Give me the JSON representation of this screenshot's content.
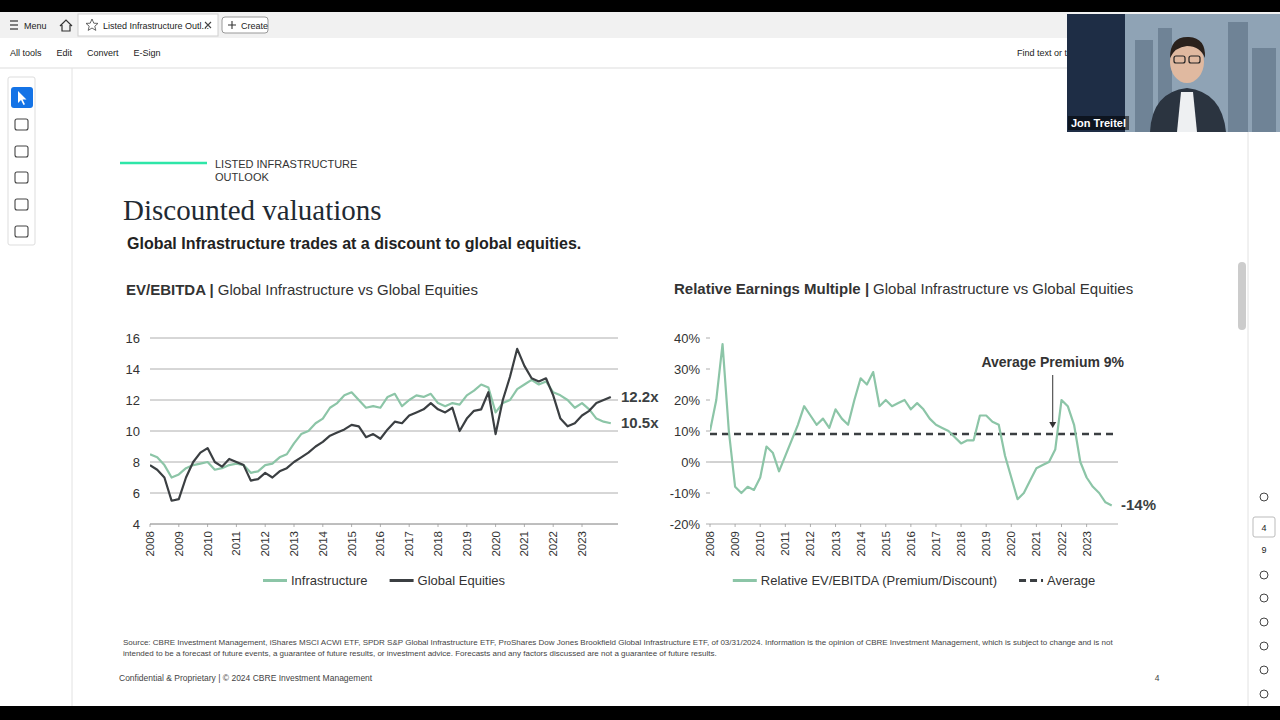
{
  "viewer": {
    "menu": "Menu",
    "tab": "Listed Infrastructure Outl...",
    "create": "Create",
    "tools": [
      "All tools",
      "Edit",
      "Convert",
      "E-Sign"
    ],
    "search": "Find text or to",
    "page_current": "4",
    "page_total": "9",
    "presenter": "Jon Treitel"
  },
  "page": {
    "section": "LISTED INFRASTRUCTURE OUTLOOK",
    "title": "Discounted valuations",
    "subtitle": "Global Infrastructure trades at a discount to global equities.",
    "source": "Source:  CBRE Investment Management, iShares MSCI ACWI ETF, SPDR S&P Global Infrastructure ETF, ProShares Dow Jones Brookfield Global Infrastructure ETF, of 03/31/2024.  Information is the opinion of CBRE Investment Management, which is subject to change and is not intended to be a forecast of future events, a guarantee of future results, or investment advice. Forecasts and any factors discussed are not a guarantee of future results.",
    "footer": "Confidential & Proprietary | © 2024 CBRE Investment Management",
    "page_number": "4"
  },
  "chart_data": [
    {
      "type": "line",
      "title": "EV/EBITDA |",
      "subtitle": "Global Infrastructure vs Global Equities",
      "x": [
        2008,
        2008.25,
        2008.5,
        2008.75,
        2009,
        2009.25,
        2009.5,
        2009.75,
        2010,
        2010.25,
        2010.5,
        2010.75,
        2011,
        2011.25,
        2011.5,
        2011.75,
        2012,
        2012.25,
        2012.5,
        2012.75,
        2013,
        2013.25,
        2013.5,
        2013.75,
        2014,
        2014.25,
        2014.5,
        2014.75,
        2015,
        2015.25,
        2015.5,
        2015.75,
        2016,
        2016.25,
        2016.5,
        2016.75,
        2017,
        2017.25,
        2017.5,
        2017.75,
        2018,
        2018.25,
        2018.5,
        2018.75,
        2019,
        2019.25,
        2019.5,
        2019.75,
        2020,
        2020.25,
        2020.5,
        2020.75,
        2021,
        2021.25,
        2021.5,
        2021.75,
        2022,
        2022.25,
        2022.5,
        2022.75,
        2023,
        2023.25,
        2023.5,
        2023.75,
        2024
      ],
      "xlim": [
        2008,
        2024.25
      ],
      "xticks": [
        2008,
        2009,
        2010,
        2011,
        2012,
        2013,
        2014,
        2015,
        2016,
        2017,
        2018,
        2019,
        2020,
        2021,
        2022,
        2023
      ],
      "ylim": [
        4,
        16
      ],
      "yticks": [
        4,
        6,
        8,
        10,
        12,
        14,
        16
      ],
      "grid": true,
      "legend": "bottom",
      "series": [
        {
          "name": "Infrastructure",
          "color": "#8cc5a7",
          "values": [
            8.5,
            8.3,
            7.8,
            7.0,
            7.2,
            7.6,
            7.8,
            7.9,
            8.0,
            7.5,
            7.6,
            7.8,
            7.9,
            7.8,
            7.3,
            7.4,
            7.8,
            7.9,
            8.3,
            8.5,
            9.2,
            9.8,
            10.0,
            10.5,
            10.8,
            11.5,
            11.8,
            12.3,
            12.5,
            12.0,
            11.5,
            11.6,
            11.5,
            12.2,
            12.4,
            11.6,
            12.0,
            12.3,
            12.2,
            12.4,
            11.8,
            11.6,
            11.8,
            11.7,
            12.3,
            12.6,
            13.0,
            12.8,
            11.2,
            11.8,
            12.0,
            12.7,
            13.0,
            13.3,
            13.0,
            13.2,
            12.5,
            12.3,
            12.0,
            11.5,
            11.8,
            11.4,
            10.8,
            10.6,
            10.5
          ]
        },
        {
          "name": "Global Equities",
          "color": "#3b3f42",
          "values": [
            7.8,
            7.5,
            7.0,
            5.5,
            5.6,
            7.0,
            8.0,
            8.6,
            8.9,
            8.0,
            7.7,
            8.2,
            8.0,
            7.8,
            6.8,
            6.9,
            7.3,
            7.0,
            7.4,
            7.6,
            8.0,
            8.3,
            8.6,
            9.0,
            9.3,
            9.7,
            9.9,
            10.1,
            10.4,
            10.3,
            9.6,
            9.8,
            9.5,
            10.1,
            10.6,
            10.5,
            11.0,
            11.2,
            11.4,
            11.8,
            11.4,
            11.2,
            11.5,
            10.0,
            10.8,
            11.3,
            11.4,
            12.5,
            9.8,
            12.0,
            13.5,
            15.3,
            14.2,
            13.4,
            13.2,
            13.4,
            12.3,
            10.8,
            10.3,
            10.5,
            11.0,
            11.3,
            11.8,
            12.0,
            12.2
          ]
        }
      ],
      "annotations": [
        {
          "label": "12.2x",
          "value": 12.2
        },
        {
          "label": "10.5x",
          "value": 10.5
        }
      ]
    },
    {
      "type": "line",
      "title": "Relative Earnings Multiple |",
      "subtitle": "Global Infrastructure vs Global Equities",
      "x": [
        2008,
        2008.25,
        2008.5,
        2008.75,
        2009,
        2009.25,
        2009.5,
        2009.75,
        2010,
        2010.25,
        2010.5,
        2010.75,
        2011,
        2011.25,
        2011.5,
        2011.75,
        2012,
        2012.25,
        2012.5,
        2012.75,
        2013,
        2013.25,
        2013.5,
        2013.75,
        2014,
        2014.25,
        2014.5,
        2014.75,
        2015,
        2015.25,
        2015.5,
        2015.75,
        2016,
        2016.25,
        2016.5,
        2016.75,
        2017,
        2017.25,
        2017.5,
        2017.75,
        2018,
        2018.25,
        2018.5,
        2018.75,
        2019,
        2019.25,
        2019.5,
        2019.75,
        2020,
        2020.25,
        2020.5,
        2020.75,
        2021,
        2021.25,
        2021.5,
        2021.75,
        2022,
        2022.25,
        2022.5,
        2022.75,
        2023,
        2023.25,
        2023.5,
        2023.75,
        2024
      ],
      "xlim": [
        2008,
        2024.25
      ],
      "xticks": [
        2008,
        2009,
        2010,
        2011,
        2012,
        2013,
        2014,
        2015,
        2016,
        2017,
        2018,
        2019,
        2020,
        2021,
        2022,
        2023
      ],
      "ylim": [
        -20,
        40
      ],
      "yticks": [
        {
          "value": -20,
          "label": "-20%"
        },
        {
          "value": -10,
          "label": "-10%"
        },
        {
          "value": 0,
          "label": "0%"
        },
        {
          "value": 10,
          "label": "10%"
        },
        {
          "value": 20,
          "label": "20%"
        },
        {
          "value": 30,
          "label": "30%"
        },
        {
          "value": 40,
          "label": "40%"
        }
      ],
      "grid": false,
      "legend": "bottom",
      "series": [
        {
          "name": "Relative EV/EBITDA (Premium/Discount)",
          "color": "#8cc5a7",
          "values": [
            10,
            20,
            38,
            10,
            -8,
            -10,
            -8,
            -9,
            -5,
            5,
            3,
            -3,
            2,
            7,
            12,
            18,
            15,
            12,
            14,
            11,
            17,
            14,
            12,
            20,
            27,
            25,
            29,
            18,
            20,
            18,
            19,
            20,
            17,
            19,
            17,
            14,
            12,
            11,
            10,
            8,
            6,
            7,
            7,
            15,
            15,
            13,
            12,
            2,
            -5,
            -12,
            -10,
            -6,
            -2,
            -1,
            0,
            4,
            20,
            18,
            12,
            0,
            -5,
            -8,
            -10,
            -13,
            -14
          ]
        }
      ],
      "average": {
        "name": "Average",
        "value": 9,
        "color": "#3b3f42",
        "line_style": "dashed"
      },
      "annotations": [
        {
          "label": "Average Premium 9%",
          "value": 9
        },
        {
          "label": "-14%",
          "value": -14
        }
      ]
    }
  ]
}
